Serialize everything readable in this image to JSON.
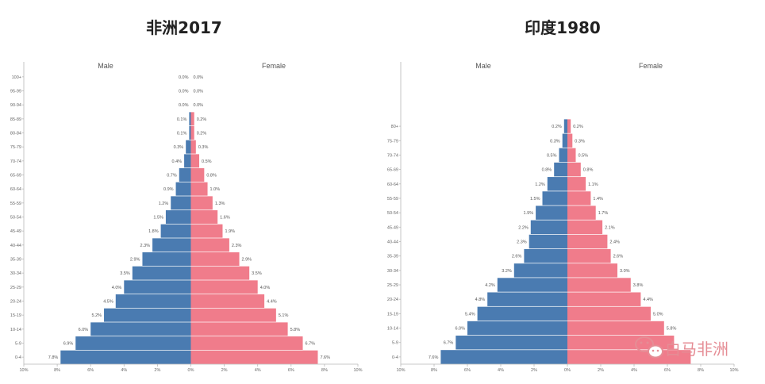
{
  "colors": {
    "male": "#4a7bb1",
    "female": "#f07c8b",
    "accent": "#e8838f"
  },
  "watermark": {
    "text": "白马非洲",
    "icon": "wechat-icon"
  },
  "chart_data": [
    {
      "type": "bar",
      "title": "非洲2017",
      "left_label": "Male",
      "right_label": "Female",
      "categories": [
        "0-4",
        "5-9",
        "10-14",
        "15-19",
        "20-24",
        "25-29",
        "30-34",
        "35-39",
        "40-44",
        "45-49",
        "50-54",
        "55-59",
        "60-64",
        "65-69",
        "70-74",
        "75-79",
        "80-84",
        "85-89",
        "90-94",
        "95-99",
        "100+"
      ],
      "series": [
        {
          "name": "Male",
          "values": [
            7.8,
            6.9,
            6.0,
            5.2,
            4.5,
            4.0,
            3.5,
            2.9,
            2.3,
            1.8,
            1.5,
            1.2,
            0.9,
            0.7,
            0.4,
            0.3,
            0.1,
            0.1,
            0.0,
            0.0,
            0.0
          ]
        },
        {
          "name": "Female",
          "values": [
            7.6,
            6.7,
            5.8,
            5.1,
            4.4,
            4.0,
            3.5,
            2.9,
            2.3,
            1.9,
            1.6,
            1.3,
            1.0,
            0.8,
            0.5,
            0.3,
            0.2,
            0.2,
            0.0,
            0.0,
            0.0
          ]
        }
      ],
      "value_labels": {
        "male": [
          "7.8%",
          "6.9%",
          "6.0%",
          "5.2%",
          "4.5%",
          "4.0%",
          "3.5%",
          "2.9%",
          "2.3%",
          "1.8%",
          "1.5%",
          "1.2%",
          "0.9%",
          "0.7%",
          "0.4%",
          "0.3%",
          "0.1%",
          "0.1%",
          "0.0%",
          "0.0%",
          "0.0%"
        ],
        "female": [
          "7.6%",
          "6.7%",
          "5.8%",
          "5.1%",
          "4.4%",
          "4.0%",
          "3.5%",
          "2.9%",
          "2.3%",
          "1.9%",
          "1.6%",
          "1.3%",
          "1.0%",
          "0.8%",
          "0.5%",
          "0.3%",
          "0.2%",
          "0.2%",
          "0.0%",
          "0.0%",
          "0.0%"
        ]
      },
      "x_ticks": [
        "10%",
        "8%",
        "6%",
        "4%",
        "2%",
        "0%",
        "2%",
        "4%",
        "6%",
        "8%",
        "10%"
      ],
      "xlim": [
        -10,
        10
      ],
      "grid": false
    },
    {
      "type": "bar",
      "title": "印度1980",
      "left_label": "Male",
      "right_label": "Female",
      "categories": [
        "0-4",
        "5-9",
        "10-14",
        "15-19",
        "20-24",
        "25-29",
        "30-34",
        "35-39",
        "40-44",
        "45-49",
        "50-54",
        "55-59",
        "60-64",
        "65-69",
        "70-74",
        "75-79",
        "80+"
      ],
      "series": [
        {
          "name": "Male",
          "values": [
            7.6,
            6.7,
            6.0,
            5.4,
            4.8,
            4.2,
            3.2,
            2.6,
            2.3,
            2.2,
            1.9,
            1.5,
            1.2,
            0.8,
            0.5,
            0.3,
            0.2
          ]
        },
        {
          "name": "Female",
          "values": [
            7.4,
            6.4,
            5.8,
            5.0,
            4.4,
            3.8,
            3.0,
            2.6,
            2.4,
            2.1,
            1.7,
            1.4,
            1.1,
            0.8,
            0.5,
            0.3,
            0.2
          ]
        }
      ],
      "value_labels": {
        "male": [
          "7.6%",
          "6.7%",
          "6.0%",
          "5.4%",
          "4.8%",
          "4.2%",
          "3.2%",
          "2.6%",
          "2.3%",
          "2.2%",
          "1.9%",
          "1.5%",
          "1.2%",
          "0.8%",
          "0.5%",
          "0.3%",
          "0.2%"
        ],
        "female": [
          "",
          "",
          "5.8%",
          "5.0%",
          "4.4%",
          "3.8%",
          "3.0%",
          "2.6%",
          "2.4%",
          "2.1%",
          "1.7%",
          "1.4%",
          "1.1%",
          "0.8%",
          "0.5%",
          "0.3%",
          "0.2%"
        ]
      },
      "x_ticks": [
        "10%",
        "8%",
        "6%",
        "4%",
        "2%",
        "0%",
        "2%",
        "4%",
        "6%",
        "8%",
        "10%"
      ],
      "xlim": [
        -10,
        10
      ],
      "grid": false
    }
  ]
}
